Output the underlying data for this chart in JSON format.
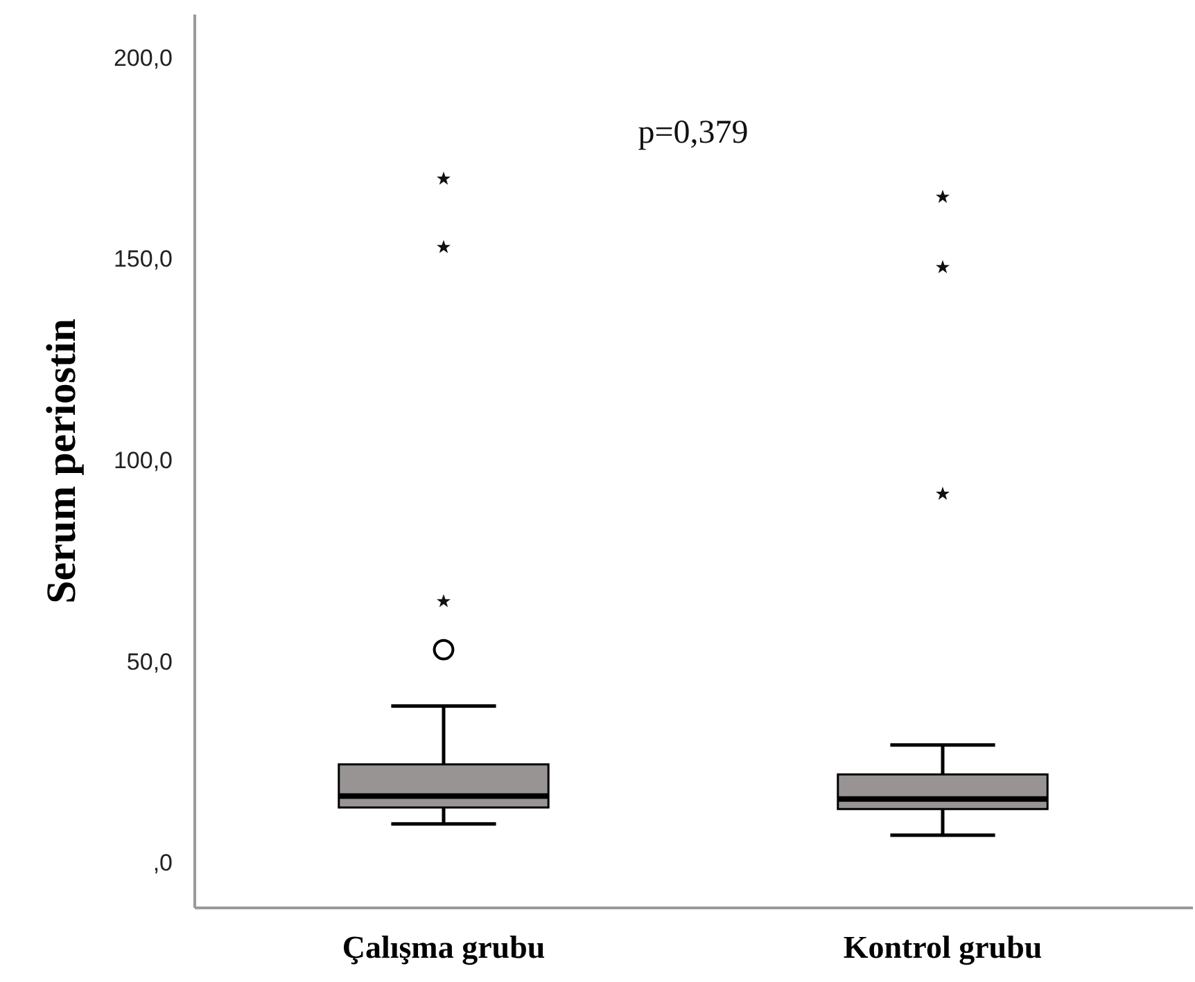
{
  "chart_data": {
    "type": "box",
    "ylabel": "Serum periostin",
    "categories": [
      "Çalışma grubu",
      "Kontrol grubu"
    ],
    "series": [
      {
        "color": "#989494",
        "boxes": [
          {
            "low": 9.7,
            "q1": 13.8,
            "median": 16.6,
            "q3": 24.5,
            "high": 39,
            "outliers": [
              65,
              153,
              170
            ]
          },
          {
            "low": 6.9,
            "q1": 13.4,
            "median": 15.9,
            "q3": 22,
            "high": 29.3,
            "outliers": [
              91.7,
              148,
              165.5
            ]
          }
        ]
      },
      {
        "type": "scatter",
        "x": [
          "Çalışma grubu"
        ],
        "values": [
          53
        ],
        "marker": "circle",
        "color": "#000000"
      }
    ],
    "marker": "star",
    "ylim": [
      -11,
      211
    ],
    "yticks": [
      {
        "value": 0,
        "label": ",0"
      },
      {
        "value": 50,
        "label": "50,0"
      },
      {
        "value": 100,
        "label": "100,0"
      },
      {
        "value": 150,
        "label": "150,0"
      },
      {
        "value": 200,
        "label": "200,0"
      }
    ],
    "annotations": [
      "p=0,379"
    ],
    "grid": false
  }
}
